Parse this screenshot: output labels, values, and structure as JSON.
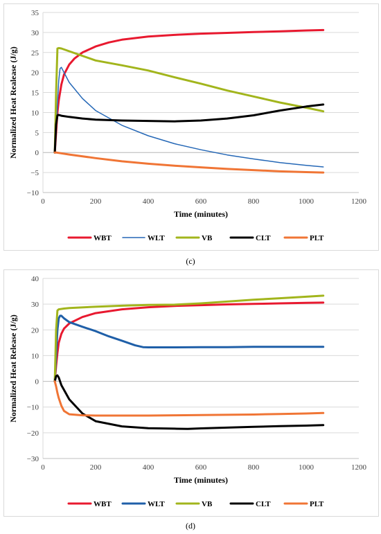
{
  "captions": {
    "c": "(c)",
    "d": "(d)"
  },
  "chart_data": [
    {
      "type": "line",
      "id": "c",
      "title": "",
      "xlabel": "Time (minutes)",
      "ylabel": "Normalized Heat Realease (J/g)",
      "xlim": [
        0,
        1200
      ],
      "ylim": [
        -10,
        35
      ],
      "xticks": [
        0,
        200,
        400,
        600,
        800,
        1000,
        1200
      ],
      "yticks": [
        -10,
        -5,
        0,
        5,
        10,
        15,
        20,
        25,
        30,
        35
      ],
      "grid": "horizontal",
      "legend": "bottom",
      "series": [
        {
          "name": "WBT",
          "color": "#e8192f",
          "width": 3,
          "x": [
            45,
            50,
            55,
            60,
            70,
            80,
            100,
            120,
            150,
            200,
            250,
            300,
            400,
            500,
            600,
            700,
            800,
            900,
            1000,
            1065
          ],
          "y": [
            0,
            5,
            10,
            13,
            17,
            19.5,
            22,
            23.5,
            25,
            26.5,
            27.5,
            28.2,
            29,
            29.4,
            29.7,
            29.9,
            30.1,
            30.3,
            30.5,
            30.6
          ]
        },
        {
          "name": "WLT",
          "color": "#2467b6",
          "width": 1.5,
          "x": [
            45,
            50,
            55,
            60,
            65,
            70,
            80,
            100,
            150,
            200,
            300,
            400,
            500,
            600,
            700,
            800,
            900,
            1000,
            1065
          ],
          "y": [
            0,
            5,
            12,
            18,
            21,
            21.3,
            20,
            17.5,
            13.5,
            10.5,
            6.8,
            4.2,
            2.2,
            0.7,
            -0.6,
            -1.6,
            -2.5,
            -3.2,
            -3.6
          ]
        },
        {
          "name": "VB",
          "color": "#a2b51c",
          "width": 3,
          "x": [
            45,
            50,
            55,
            60,
            70,
            100,
            200,
            300,
            400,
            500,
            600,
            700,
            800,
            900,
            1000,
            1065
          ],
          "y": [
            0,
            15,
            26,
            26.1,
            26,
            25.3,
            23,
            21.8,
            20.5,
            18.8,
            17.2,
            15.5,
            14,
            12.5,
            11.2,
            10.3
          ]
        },
        {
          "name": "CLT",
          "color": "#000000",
          "width": 3,
          "x": [
            45,
            50,
            55,
            60,
            70,
            100,
            150,
            200,
            300,
            400,
            500,
            600,
            700,
            800,
            900,
            1000,
            1065
          ],
          "y": [
            0,
            7,
            9.3,
            9.4,
            9.2,
            8.9,
            8.5,
            8.2,
            8,
            7.9,
            7.8,
            8,
            8.5,
            9.3,
            10.5,
            11.5,
            12
          ]
        },
        {
          "name": "PLT",
          "color": "#f07535",
          "width": 3,
          "x": [
            45,
            50,
            100,
            200,
            300,
            400,
            500,
            600,
            700,
            800,
            900,
            1000,
            1065
          ],
          "y": [
            0,
            0,
            -0.5,
            -1.4,
            -2.2,
            -2.8,
            -3.3,
            -3.7,
            -4.1,
            -4.4,
            -4.7,
            -4.9,
            -5
          ]
        }
      ]
    },
    {
      "type": "line",
      "id": "d",
      "title": "",
      "xlabel": "Time (minutes)",
      "ylabel": "Normalized Heat Release (J/g)",
      "xlim": [
        0,
        1200
      ],
      "ylim": [
        -30,
        40
      ],
      "xticks": [
        0,
        200,
        400,
        600,
        800,
        1000,
        1200
      ],
      "yticks": [
        -30,
        -20,
        -10,
        0,
        10,
        20,
        30,
        40
      ],
      "grid": "horizontal",
      "legend": "bottom",
      "series": [
        {
          "name": "WBT",
          "color": "#e8192f",
          "width": 3,
          "x": [
            45,
            50,
            55,
            60,
            70,
            80,
            100,
            150,
            200,
            300,
            400,
            500,
            600,
            700,
            800,
            900,
            1000,
            1065
          ],
          "y": [
            0,
            6,
            11,
            15,
            18.5,
            20.5,
            22.5,
            25,
            26.5,
            28,
            28.8,
            29.3,
            29.6,
            29.9,
            30.1,
            30.3,
            30.5,
            30.6
          ]
        },
        {
          "name": "WLT",
          "color": "#1f5fa8",
          "width": 3,
          "x": [
            45,
            50,
            55,
            60,
            65,
            70,
            80,
            100,
            150,
            200,
            250,
            300,
            350,
            380,
            400,
            500,
            600,
            700,
            800,
            900,
            1000,
            1065
          ],
          "y": [
            0,
            10,
            20,
            24.5,
            25.5,
            25.5,
            24.5,
            23,
            21.2,
            19.5,
            17.5,
            15.8,
            14,
            13.3,
            13.2,
            13.2,
            13.3,
            13.3,
            13.4,
            13.4,
            13.4,
            13.4
          ]
        },
        {
          "name": "VB",
          "color": "#a2b51c",
          "width": 3,
          "x": [
            45,
            50,
            55,
            60,
            80,
            100,
            200,
            300,
            400,
            500,
            600,
            700,
            800,
            900,
            1000,
            1065
          ],
          "y": [
            0,
            20,
            27.5,
            28,
            28.3,
            28.5,
            29,
            29.4,
            29.7,
            29.8,
            30.3,
            31,
            31.7,
            32.3,
            32.9,
            33.3
          ]
        },
        {
          "name": "CLT",
          "color": "#000000",
          "width": 3,
          "x": [
            45,
            50,
            55,
            60,
            70,
            100,
            150,
            200,
            300,
            400,
            500,
            550,
            600,
            700,
            800,
            900,
            1000,
            1065
          ],
          "y": [
            0,
            2,
            2.3,
            1.5,
            -1.5,
            -7,
            -12.5,
            -15.5,
            -17.5,
            -18.2,
            -18.4,
            -18.5,
            -18.3,
            -18,
            -17.7,
            -17.4,
            -17.2,
            -17
          ]
        },
        {
          "name": "PLT",
          "color": "#f07535",
          "width": 3,
          "x": [
            45,
            50,
            55,
            60,
            70,
            80,
            100,
            150,
            200,
            300,
            400,
            500,
            600,
            700,
            800,
            900,
            1000,
            1065
          ],
          "y": [
            0,
            -2,
            -4.5,
            -6.5,
            -9.5,
            -11.5,
            -12.8,
            -13.2,
            -13.3,
            -13.3,
            -13.3,
            -13.2,
            -13.1,
            -13,
            -12.9,
            -12.7,
            -12.5,
            -12.3
          ]
        }
      ]
    }
  ]
}
